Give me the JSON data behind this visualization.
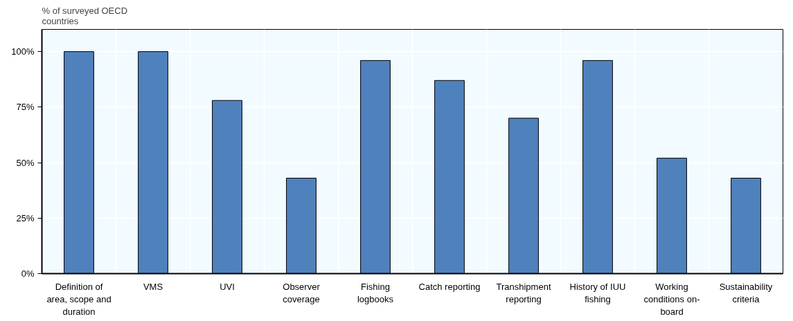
{
  "chart_data": {
    "type": "bar",
    "ylabel": "% of surveyed OECD countries",
    "categories": [
      "Definition of area, scope and duration",
      "VMS",
      "UVI",
      "Observer coverage",
      "Fishing logbooks",
      "Catch reporting",
      "Transhipment reporting",
      "History of IUU fishing",
      "Working conditions on-board",
      "Sustainability criteria"
    ],
    "values": [
      100,
      100,
      78,
      43,
      96,
      87,
      70,
      96,
      52,
      43
    ],
    "color": "#4f81bd",
    "ylim": [
      0,
      110
    ],
    "yticks": [
      {
        "value": 0,
        "label": "0%"
      },
      {
        "value": 25,
        "label": "25%"
      },
      {
        "value": 50,
        "label": "50%"
      },
      {
        "value": 75,
        "label": "75%"
      },
      {
        "value": 100,
        "label": "100%"
      }
    ],
    "grid": true
  }
}
